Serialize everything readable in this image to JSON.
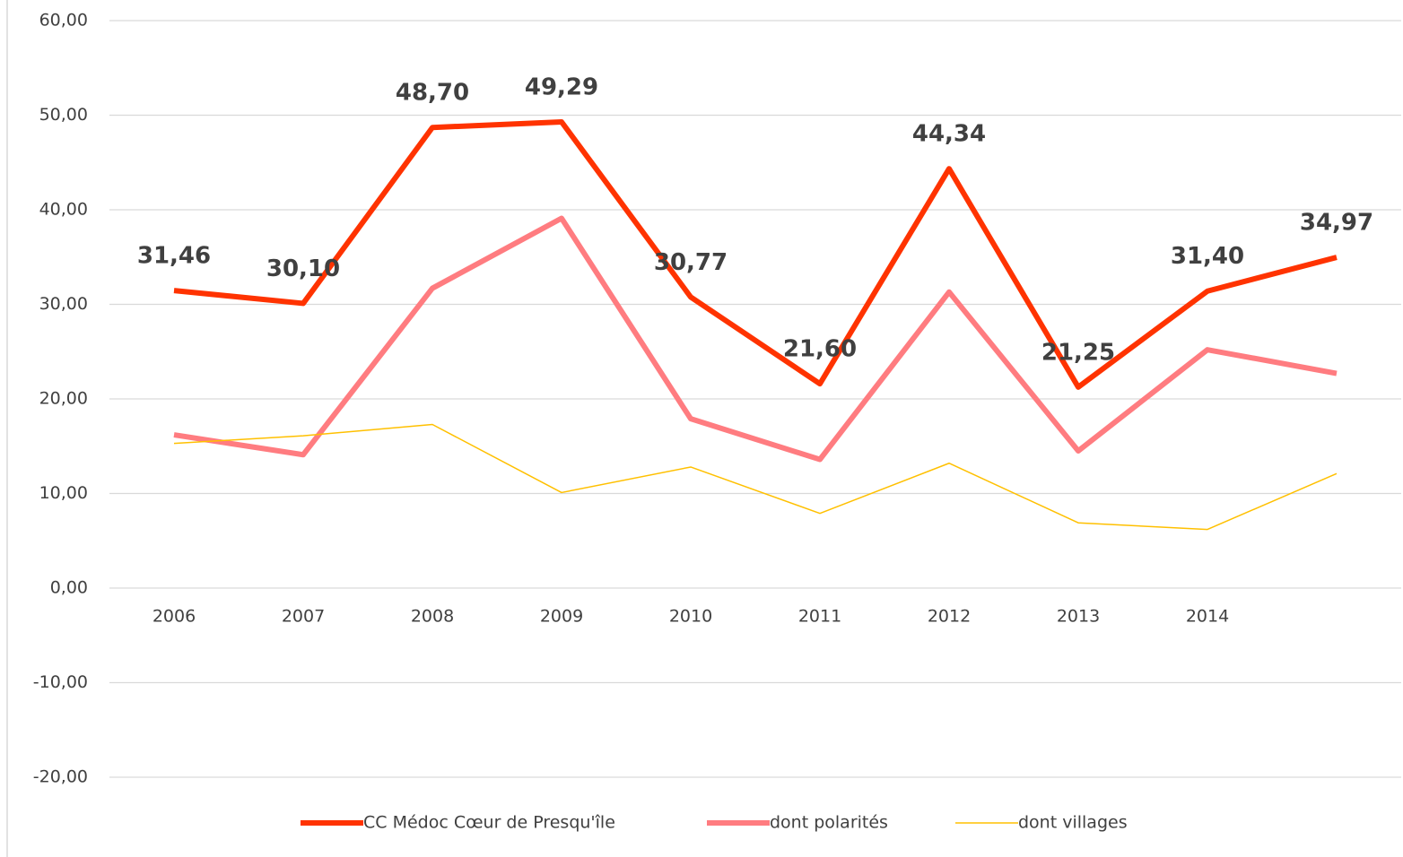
{
  "chart_data": {
    "type": "line",
    "categories": [
      "2006",
      "2007",
      "2008",
      "2009",
      "2010",
      "2011",
      "2012",
      "2013",
      "2014",
      null
    ],
    "series": [
      {
        "name": "CC Médoc Cœur de Presqu'île",
        "color": "#ff3300",
        "width": 6,
        "values": [
          31.46,
          30.1,
          48.7,
          49.29,
          30.77,
          21.6,
          44.34,
          21.25,
          31.4,
          34.97
        ],
        "value_labels": [
          "31,46",
          "30,10",
          "48,70",
          "49,29",
          "30,77",
          "21,60",
          "44,34",
          "21,25",
          "31,40",
          "34,97"
        ]
      },
      {
        "name": "dont polarités",
        "color": "#ff7c80",
        "width": 6,
        "values": [
          16.2,
          14.1,
          31.7,
          39.1,
          17.9,
          13.6,
          31.3,
          14.5,
          25.2,
          22.7
        ]
      },
      {
        "name": "dont villages",
        "color": "#ffc000",
        "width": 1.5,
        "values": [
          15.3,
          16.1,
          17.3,
          10.1,
          12.8,
          7.9,
          13.2,
          6.9,
          6.2,
          12.1
        ]
      }
    ],
    "ylim": [
      -20,
      60
    ],
    "yticks": [
      {
        "value": -20,
        "label": "-20,00"
      },
      {
        "value": -10,
        "label": "-10,00"
      },
      {
        "value": 0,
        "label": "0,00"
      },
      {
        "value": 10,
        "label": "10,00"
      },
      {
        "value": 20,
        "label": "20,00"
      },
      {
        "value": 30,
        "label": "30,00"
      },
      {
        "value": 40,
        "label": "40,00"
      },
      {
        "value": 50,
        "label": "50,00"
      },
      {
        "value": 60,
        "label": "60,00"
      }
    ],
    "grid": true,
    "legend": "bottom"
  }
}
